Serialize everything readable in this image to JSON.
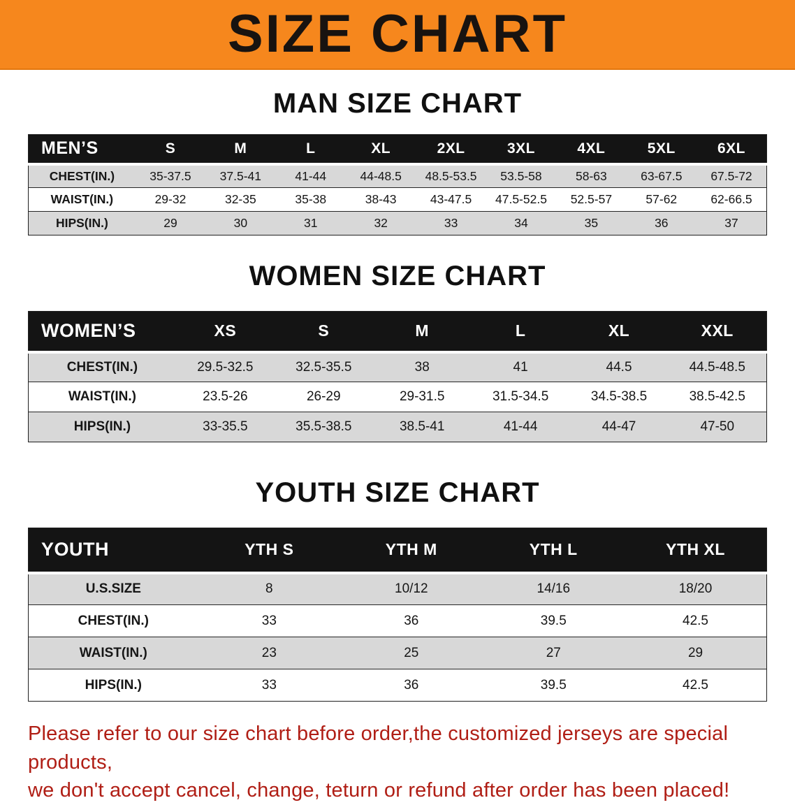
{
  "banner": {
    "title": "SIZE CHART",
    "bg_color": "#f6871d"
  },
  "sections": [
    {
      "heading": "MAN SIZE CHART",
      "table": {
        "header": [
          "MEN’S",
          "S",
          "M",
          "L",
          "XL",
          "2XL",
          "3XL",
          "4XL",
          "5XL",
          "6XL"
        ],
        "rows": [
          [
            "CHEST(IN.)",
            "35-37.5",
            "37.5-41",
            "41-44",
            "44-48.5",
            "48.5-53.5",
            "53.5-58",
            "58-63",
            "63-67.5",
            "67.5-72"
          ],
          [
            "WAIST(IN.)",
            "29-32",
            "32-35",
            "35-38",
            "38-43",
            "43-47.5",
            "47.5-52.5",
            "52.5-57",
            "57-62",
            "62-66.5"
          ],
          [
            "HIPS(IN.)",
            "29",
            "30",
            "31",
            "32",
            "33",
            "34",
            "35",
            "36",
            "37"
          ]
        ]
      }
    },
    {
      "heading": "WOMEN SIZE CHART",
      "table": {
        "header": [
          "WOMEN’S",
          "XS",
          "S",
          "M",
          "L",
          "XL",
          "XXL"
        ],
        "rows": [
          [
            "CHEST(IN.)",
            "29.5-32.5",
            "32.5-35.5",
            "38",
            "41",
            "44.5",
            "44.5-48.5"
          ],
          [
            "WAIST(IN.)",
            "23.5-26",
            "26-29",
            "29-31.5",
            "31.5-34.5",
            "34.5-38.5",
            "38.5-42.5"
          ],
          [
            "HIPS(IN.)",
            "33-35.5",
            "35.5-38.5",
            "38.5-41",
            "41-44",
            "44-47",
            "47-50"
          ]
        ]
      }
    },
    {
      "heading": "YOUTH SIZE CHART",
      "table": {
        "header": [
          "YOUTH",
          "YTH S",
          "YTH M",
          "YTH L",
          "YTH XL"
        ],
        "rows": [
          [
            "U.S.SIZE",
            "8",
            "10/12",
            "14/16",
            "18/20"
          ],
          [
            "CHEST(IN.)",
            "33",
            "36",
            "39.5",
            "42.5"
          ],
          [
            "WAIST(IN.)",
            "23",
            "25",
            "27",
            "29"
          ],
          [
            "HIPS(IN.)",
            "33",
            "36",
            "39.5",
            "42.5"
          ]
        ]
      }
    }
  ],
  "disclaimer": {
    "line1": "Please refer to our size chart before order,the customized jerseys are special products,",
    "line2": "we don't accept cancel, change, teturn or refund after order has been placed!",
    "color": "#b01e15"
  }
}
